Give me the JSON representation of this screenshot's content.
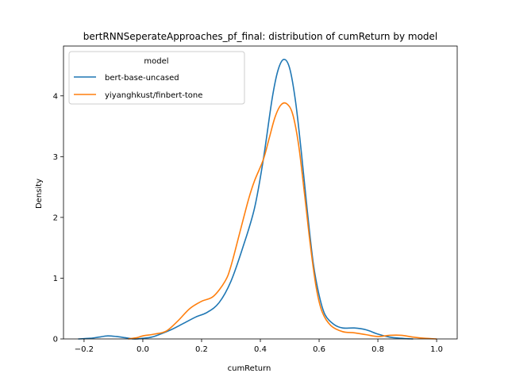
{
  "chart_data": {
    "type": "line",
    "title": "bertRNNSeperateApproaches_pf_final: distribution of cumReturn by model",
    "xlabel": "cumReturn",
    "ylabel": "Density",
    "xlim": [
      -0.27,
      1.07
    ],
    "ylim": [
      0,
      4.82
    ],
    "xticks": [
      -0.2,
      0.0,
      0.2,
      0.4,
      0.6,
      0.8,
      1.0
    ],
    "xtick_labels": [
      "−0.2",
      "0.0",
      "0.2",
      "0.4",
      "0.6",
      "0.8",
      "1.0"
    ],
    "yticks": [
      0,
      1,
      2,
      3,
      4
    ],
    "ytick_labels": [
      "0",
      "1",
      "2",
      "3",
      "4"
    ],
    "grid": false,
    "legend": {
      "title": "model",
      "placement": "top-left"
    },
    "series": [
      {
        "name": "bert-base-uncased",
        "color": "#1f77b4",
        "x": [
          -0.22,
          -0.18,
          -0.15,
          -0.12,
          -0.09,
          -0.06,
          -0.03,
          0.0,
          0.03,
          0.06,
          0.1,
          0.14,
          0.18,
          0.22,
          0.26,
          0.3,
          0.34,
          0.38,
          0.41,
          0.44,
          0.46,
          0.48,
          0.5,
          0.52,
          0.54,
          0.56,
          0.58,
          0.6,
          0.62,
          0.65,
          0.68,
          0.72,
          0.76,
          0.8,
          0.84,
          0.88,
          0.92
        ],
        "y": [
          0.0,
          0.01,
          0.03,
          0.05,
          0.04,
          0.02,
          0.0,
          0.01,
          0.03,
          0.08,
          0.16,
          0.26,
          0.36,
          0.44,
          0.6,
          0.95,
          1.5,
          2.15,
          2.95,
          3.95,
          4.42,
          4.6,
          4.45,
          3.9,
          3.05,
          2.1,
          1.25,
          0.72,
          0.4,
          0.24,
          0.18,
          0.18,
          0.15,
          0.08,
          0.03,
          0.01,
          0.0
        ]
      },
      {
        "name": "yiyanghkust/finbert-tone",
        "color": "#ff7f0e",
        "x": [
          -0.05,
          -0.02,
          0.0,
          0.04,
          0.08,
          0.12,
          0.16,
          0.2,
          0.24,
          0.28,
          0.3,
          0.33,
          0.36,
          0.38,
          0.41,
          0.43,
          0.45,
          0.47,
          0.49,
          0.51,
          0.53,
          0.55,
          0.57,
          0.59,
          0.61,
          0.64,
          0.68,
          0.72,
          0.76,
          0.8,
          0.84,
          0.88,
          0.92,
          0.96,
          1.0
        ],
        "y": [
          0.0,
          0.02,
          0.05,
          0.08,
          0.13,
          0.3,
          0.5,
          0.62,
          0.7,
          0.95,
          1.2,
          1.75,
          2.3,
          2.6,
          2.95,
          3.3,
          3.65,
          3.85,
          3.87,
          3.7,
          3.2,
          2.4,
          1.55,
          0.85,
          0.45,
          0.22,
          0.12,
          0.1,
          0.07,
          0.04,
          0.06,
          0.06,
          0.03,
          0.01,
          0.0
        ]
      }
    ]
  }
}
